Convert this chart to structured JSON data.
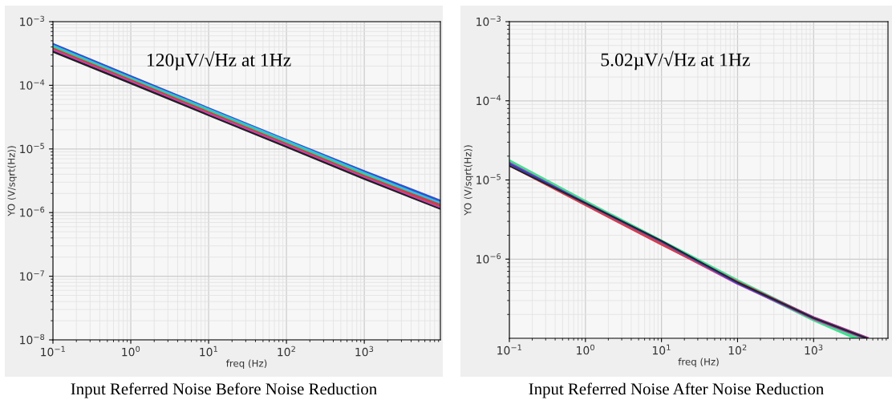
{
  "chart_data": [
    {
      "type": "line",
      "title": "Input Referred Noise Before Noise Reduction",
      "xlabel": "freq (Hz)",
      "ylabel": "YO (V/sqrt(Hz))",
      "log": "xy",
      "grid": true,
      "legend": false,
      "xlim": [
        0.1,
        9500
      ],
      "ylim": [
        1e-08,
        0.001
      ],
      "xticks": [
        {
          "value": 0.1,
          "label": "10$^{−1}$"
        },
        {
          "value": 1,
          "label": "10$^{0}$"
        },
        {
          "value": 10,
          "label": "10$^{1}$"
        },
        {
          "value": 100,
          "label": "10$^{2}$"
        },
        {
          "value": 1000,
          "label": "10$^{3}$"
        }
      ],
      "yticks": [
        {
          "value": 1e-08,
          "label": "10$^{−8}$"
        },
        {
          "value": 1e-07,
          "label": "10$^{−7}$"
        },
        {
          "value": 1e-06,
          "label": "10$^{−6}$"
        },
        {
          "value": 1e-05,
          "label": "10$^{−5}$"
        },
        {
          "value": 0.0001,
          "label": "10$^{−4}$"
        },
        {
          "value": 0.001,
          "label": "10$^{−3}$"
        }
      ],
      "annotations": [
        "120µV/√Hz at 1Hz"
      ],
      "x": [
        0.1,
        1,
        10,
        100,
        1000,
        9500
      ],
      "series": [
        {
          "color": "#3050d0",
          "values": [
            0.00042,
            0.00013,
            4.1e-05,
            1.3e-05,
            4.2e-06,
            1.45e-06
          ]
        },
        {
          "color": "#30c0e0",
          "values": [
            0.0004,
            0.000125,
            4e-05,
            1.28e-05,
            4e-06,
            1.35e-06
          ]
        },
        {
          "color": "#40d070",
          "values": [
            0.00038,
            0.00012,
            3.8e-05,
            1.2e-05,
            3.8e-06,
            1.25e-06
          ]
        },
        {
          "color": "#d04040",
          "values": [
            0.00037,
            0.000118,
            3.7e-05,
            1.18e-05,
            3.7e-06,
            1.3e-06
          ]
        },
        {
          "color": "#202020",
          "values": [
            0.00034,
            0.000108,
            3.4e-05,
            1.08e-05,
            3.4e-06,
            1.15e-06
          ]
        },
        {
          "color": "#c040c0",
          "values": [
            0.00036,
            0.000115,
            3.6e-05,
            1.15e-05,
            3.6e-06,
            1.2e-06
          ]
        }
      ]
    },
    {
      "type": "line",
      "title": "Input Referred Noise After Noise Reduction",
      "xlabel": "freq (Hz)",
      "ylabel": "YO (V/sqrt(Hz))",
      "log": "xy",
      "grid": true,
      "legend": false,
      "xlim": [
        0.1,
        9500
      ],
      "ylim": [
        1e-07,
        0.001
      ],
      "xticks": [
        {
          "value": 0.1,
          "label": "10$^{−1}$"
        },
        {
          "value": 1,
          "label": "10$^{0}$"
        },
        {
          "value": 10,
          "label": "10$^{1}$"
        },
        {
          "value": 100,
          "label": "10$^{2}$"
        },
        {
          "value": 1000,
          "label": "10$^{3}$"
        }
      ],
      "yticks": [
        {
          "value": 1e-06,
          "label": "10$^{−6}$"
        },
        {
          "value": 1e-05,
          "label": "10$^{−5}$"
        },
        {
          "value": 0.0001,
          "label": "10$^{−4}$"
        },
        {
          "value": 0.001,
          "label": "10$^{−3}$"
        }
      ],
      "annotations": [
        "5.02µV/√Hz at 1Hz"
      ],
      "x": [
        0.1,
        1,
        10,
        100,
        1000,
        5000
      ],
      "series": [
        {
          "color": "#40e090",
          "x": [
            0.1,
            1,
            10,
            100,
            1000,
            3800
          ],
          "values": [
            1.7e-05,
            5.2e-06,
            1.65e-06,
            5.2e-07,
            1.75e-07,
            1e-07
          ]
        },
        {
          "color": "#c040c0",
          "values": [
            1.6e-05,
            5e-06,
            1.6e-06,
            5e-07,
            1.8e-07,
            1e-07
          ]
        },
        {
          "color": "#d04050",
          "values": [
            1.55e-05,
            4.9e-06,
            1.55e-06,
            5.1e-07,
            1.8e-07,
            1e-07
          ]
        },
        {
          "color": "#3040b0",
          "values": [
            1.6e-05,
            5.1e-06,
            1.68e-06,
            5e-07,
            1.8e-07,
            1e-07
          ]
        },
        {
          "color": "#202020",
          "values": [
            1.5e-05,
            5.1e-06,
            1.7e-06,
            5.1e-07,
            1.8e-07,
            1e-07
          ]
        }
      ]
    }
  ]
}
